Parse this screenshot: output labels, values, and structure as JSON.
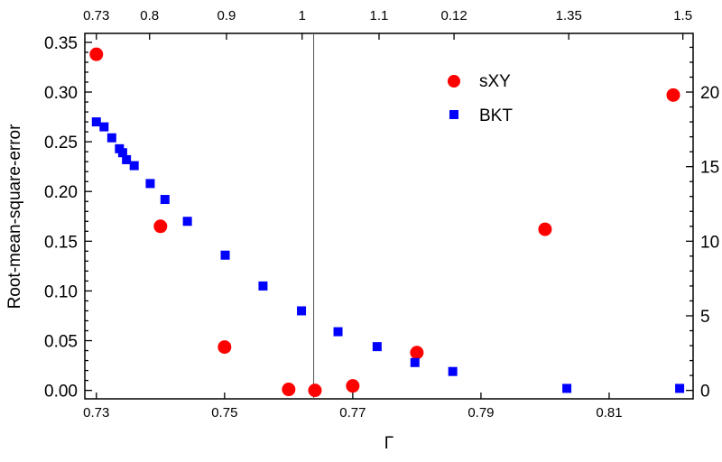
{
  "chart_data": {
    "type": "scatter",
    "title": "",
    "xlabel": "Γ",
    "ylabel": "Root-mean-square-error",
    "xlim": [
      0.7282,
      0.8231
    ],
    "ylim": [
      -0.0085,
      0.359
    ],
    "right_ylim_scale": 66.667,
    "x_ticks": [
      "0.73",
      "0.75",
      "0.77",
      "0.79",
      "0.81"
    ],
    "x_tick_values": [
      0.73,
      0.75,
      0.77,
      0.79,
      0.81
    ],
    "y_ticks": [
      "0.00",
      "0.05",
      "0.10",
      "0.15",
      "0.20",
      "0.25",
      "0.30",
      "0.35"
    ],
    "y_tick_values": [
      0,
      0.05,
      0.1,
      0.15,
      0.2,
      0.25,
      0.3,
      0.35
    ],
    "right_y_ticks": [
      "0",
      "5",
      "10",
      "15",
      "20"
    ],
    "right_y_tick_values": [
      0,
      5,
      10,
      15,
      20
    ],
    "top_ticks": [
      "0.73",
      "0.8",
      "0.9",
      "1",
      "1.1",
      "0.12",
      "1.35",
      "1.5"
    ],
    "top_tick_positions_gamma": [
      0.73,
      0.7383,
      0.7503,
      0.7621,
      0.7741,
      0.7858,
      0.8037,
      0.8215
    ],
    "vertical_line_x": 0.7639,
    "legend_position": "top-right",
    "series": [
      {
        "name": "sXY",
        "marker": "circle",
        "color": "#ff0000",
        "x": [
          0.73,
          0.74,
          0.75,
          0.76,
          0.7641,
          0.77,
          0.78,
          0.8,
          0.82
        ],
        "y": [
          0.338,
          0.165,
          0.0436,
          0.001,
          0.0,
          0.0045,
          0.038,
          0.162,
          0.297
        ]
      },
      {
        "name": "BKT",
        "marker": "square",
        "color": "#0000ff",
        "x": [
          0.73,
          0.7312,
          0.7324,
          0.7336,
          0.7341,
          0.7347,
          0.7359,
          0.7384,
          0.7407,
          0.7442,
          0.7501,
          0.756,
          0.762,
          0.7677,
          0.7738,
          0.7797,
          0.7856,
          0.8034,
          0.821
        ],
        "y": [
          0.27,
          0.265,
          0.254,
          0.243,
          0.239,
          0.232,
          0.226,
          0.208,
          0.192,
          0.17,
          0.136,
          0.105,
          0.08,
          0.059,
          0.044,
          0.028,
          0.019,
          0.002,
          0.002
        ]
      }
    ]
  }
}
